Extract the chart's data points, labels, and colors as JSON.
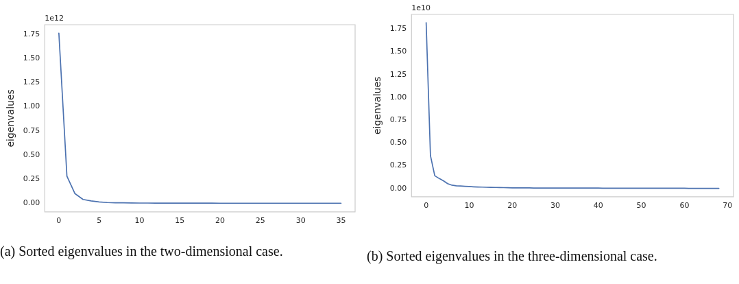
{
  "chart_data": [
    {
      "type": "line",
      "ylabel": "eigenvalues",
      "annotations": [
        "1e12",
        "(a) Sorted eigenvalues in the two-dimensional case."
      ],
      "x": [
        0,
        1,
        2,
        3,
        4,
        5,
        6,
        7,
        8,
        9,
        10,
        11,
        12,
        13,
        14,
        15,
        16,
        17,
        18,
        19,
        20,
        21,
        22,
        23,
        24,
        25,
        26,
        27,
        28,
        29,
        30,
        31,
        32,
        33,
        34,
        35
      ],
      "series": [
        {
          "color": "#4c72b0",
          "values": [
            1.76,
            0.28,
            0.1,
            0.04,
            0.025,
            0.015,
            0.008,
            0.006,
            0.005,
            0.004,
            0.003,
            0.003,
            0.002,
            0.002,
            0.002,
            0.002,
            0.002,
            0.002,
            0.002,
            0.002,
            0.001,
            0.001,
            0.001,
            0.001,
            0.001,
            0.001,
            0.001,
            0.001,
            0.001,
            0.001,
            0.001,
            0.001,
            0.001,
            0.001,
            0.001,
            0.001
          ]
        }
      ],
      "xlim": [
        -1.75,
        36.75
      ],
      "xticks": [
        0,
        5,
        10,
        15,
        20,
        25,
        30,
        35
      ],
      "ylim": [
        -0.088,
        1.848
      ],
      "yticks": [
        {
          "value": 0,
          "label": "0.00"
        },
        {
          "value": 0.25,
          "label": "0.25"
        },
        {
          "value": 0.5,
          "label": "0.50"
        },
        {
          "value": 0.75,
          "label": "0.75"
        },
        {
          "value": 1,
          "label": "1.00"
        },
        {
          "value": 1.25,
          "label": "1.25"
        },
        {
          "value": 1.5,
          "label": "1.50"
        },
        {
          "value": 1.75,
          "label": "1.75"
        }
      ],
      "grid": false,
      "legend": false,
      "marker": "none",
      "line_style": "solid"
    },
    {
      "type": "line",
      "ylabel": "eigenvalues",
      "annotations": [
        "1e10",
        "(b) Sorted eigenvalues in the three-dimensional case."
      ],
      "x": [
        0,
        1,
        2,
        3,
        4,
        5,
        6,
        7,
        8,
        9,
        10,
        11,
        12,
        13,
        14,
        15,
        16,
        17,
        18,
        19,
        20,
        21,
        22,
        23,
        24,
        25,
        26,
        27,
        28,
        29,
        30,
        31,
        32,
        33,
        34,
        35,
        36,
        37,
        38,
        39,
        40,
        41,
        42,
        43,
        44,
        45,
        46,
        47,
        48,
        49,
        50,
        51,
        52,
        53,
        54,
        55,
        56,
        57,
        58,
        59,
        60,
        61,
        62,
        63,
        64,
        65,
        66,
        67,
        68
      ],
      "series": [
        {
          "color": "#4c72b0",
          "values": [
            1.82,
            0.36,
            0.14,
            0.11,
            0.085,
            0.053,
            0.036,
            0.029,
            0.027,
            0.024,
            0.021,
            0.018,
            0.016,
            0.015,
            0.013,
            0.012,
            0.011,
            0.01,
            0.009,
            0.008,
            0.007,
            0.007,
            0.006,
            0.006,
            0.006,
            0.005,
            0.005,
            0.005,
            0.005,
            0.004,
            0.004,
            0.004,
            0.004,
            0.004,
            0.004,
            0.004,
            0.004,
            0.004,
            0.004,
            0.004,
            0.004,
            0.003,
            0.003,
            0.003,
            0.003,
            0.003,
            0.003,
            0.003,
            0.003,
            0.003,
            0.003,
            0.002,
            0.002,
            0.002,
            0.002,
            0.002,
            0.002,
            0.002,
            0.002,
            0.002,
            0.002,
            0.001,
            0.001,
            0.001,
            0.001,
            0.001,
            0.001,
            0.001,
            0.001
          ]
        }
      ],
      "xlim": [
        -3.4,
        71.4
      ],
      "xticks": [
        0,
        10,
        20,
        30,
        40,
        50,
        60,
        70
      ],
      "ylim": [
        -0.091,
        1.911
      ],
      "yticks": [
        {
          "value": 0,
          "label": "0.00"
        },
        {
          "value": 0.25,
          "label": "0.25"
        },
        {
          "value": 0.5,
          "label": "0.50"
        },
        {
          "value": 0.75,
          "label": "0.75"
        },
        {
          "value": 1,
          "label": "1.00"
        },
        {
          "value": 1.25,
          "label": "1.25"
        },
        {
          "value": 1.5,
          "label": "1.50"
        },
        {
          "value": 1.75,
          "label": "1.75"
        }
      ],
      "grid": false,
      "legend": false,
      "marker": "none",
      "line_style": "solid"
    }
  ]
}
